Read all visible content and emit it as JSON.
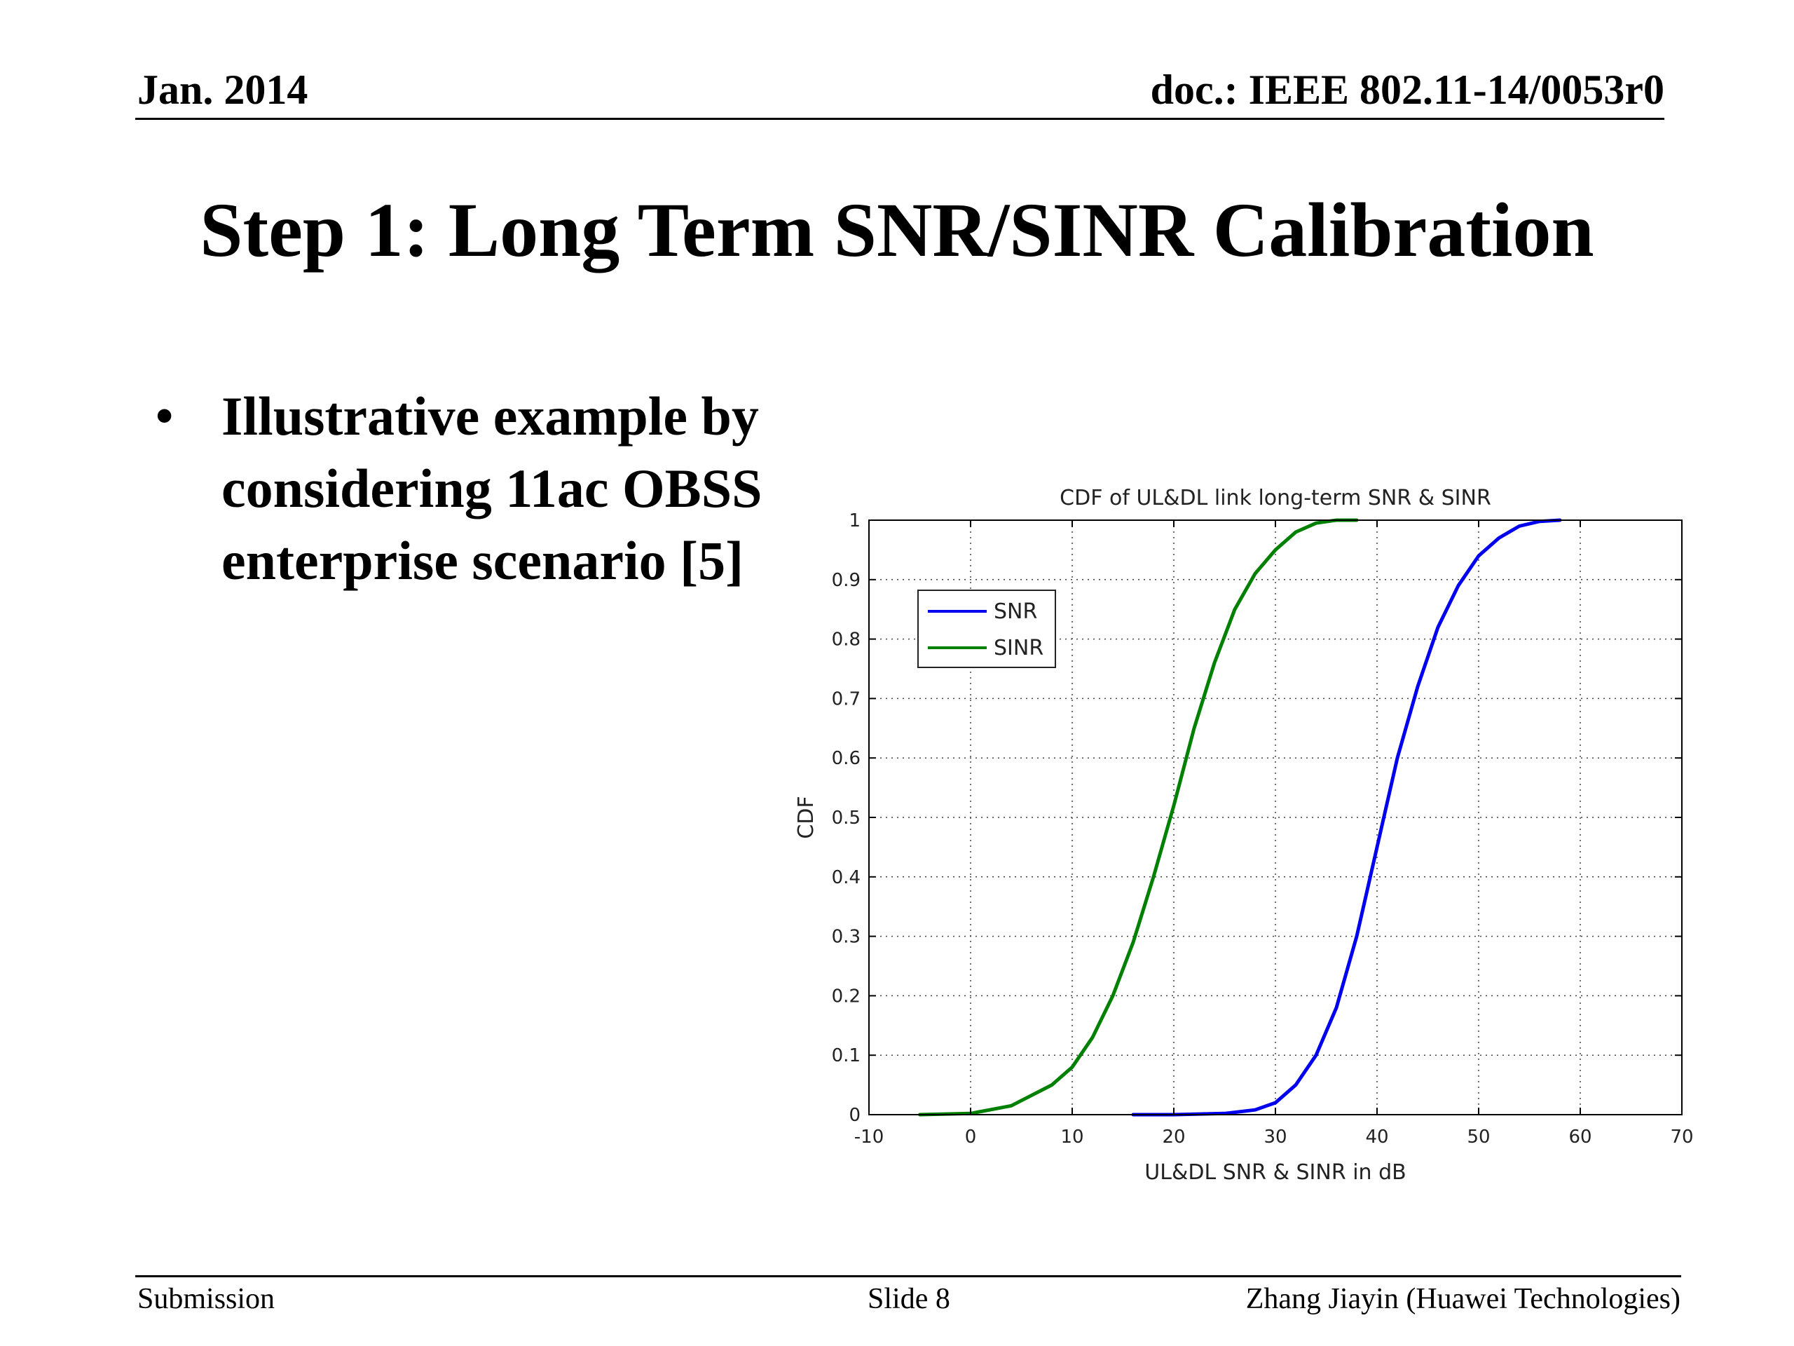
{
  "header": {
    "date": "Jan. 2014",
    "doc_id": "doc.: IEEE 802.11-14/0053r0"
  },
  "slide": {
    "title": "Step 1: Long Term SNR/SINR Calibration",
    "bullets": [
      "Illustrative example by considering 11ac OBSS enterprise scenario [5]"
    ]
  },
  "footer": {
    "left": "Submission",
    "center": "Slide 8",
    "right": "Zhang Jiayin (Huawei Technologies)"
  },
  "colors": {
    "snr": "#0000ee",
    "sinr": "#008000",
    "rule": "#000000"
  },
  "chart_data": {
    "type": "line",
    "title": "CDF of UL&DL link long-term SNR & SINR",
    "xlabel": "UL&DL SNR & SINR in dB",
    "ylabel": "CDF",
    "xlim": [
      -10,
      70
    ],
    "ylim": [
      0,
      1
    ],
    "xticks": [
      "-10",
      "0",
      "10",
      "20",
      "30",
      "40",
      "50",
      "60",
      "70"
    ],
    "yticks": [
      "0",
      "0.1",
      "0.2",
      "0.3",
      "0.4",
      "0.5",
      "0.6",
      "0.7",
      "0.8",
      "0.9",
      "1"
    ],
    "grid": true,
    "legend_position": "top-left",
    "series": [
      {
        "name": "SNR",
        "color": "#0000ee",
        "x": [
          16,
          20,
          25,
          28,
          30,
          32,
          34,
          36,
          38,
          40,
          42,
          44,
          46,
          48,
          50,
          52,
          54,
          56,
          58
        ],
        "y": [
          0,
          0,
          0.002,
          0.008,
          0.02,
          0.05,
          0.1,
          0.18,
          0.3,
          0.45,
          0.6,
          0.72,
          0.82,
          0.89,
          0.94,
          0.97,
          0.99,
          0.998,
          1.0
        ]
      },
      {
        "name": "SINR",
        "color": "#008000",
        "x": [
          -5,
          0,
          4,
          8,
          10,
          12,
          14,
          16,
          18,
          20,
          22,
          24,
          26,
          28,
          30,
          32,
          34,
          36,
          38
        ],
        "y": [
          0,
          0.002,
          0.015,
          0.05,
          0.08,
          0.13,
          0.2,
          0.29,
          0.4,
          0.52,
          0.65,
          0.76,
          0.85,
          0.91,
          0.95,
          0.98,
          0.995,
          1.0,
          1.0
        ]
      }
    ]
  }
}
